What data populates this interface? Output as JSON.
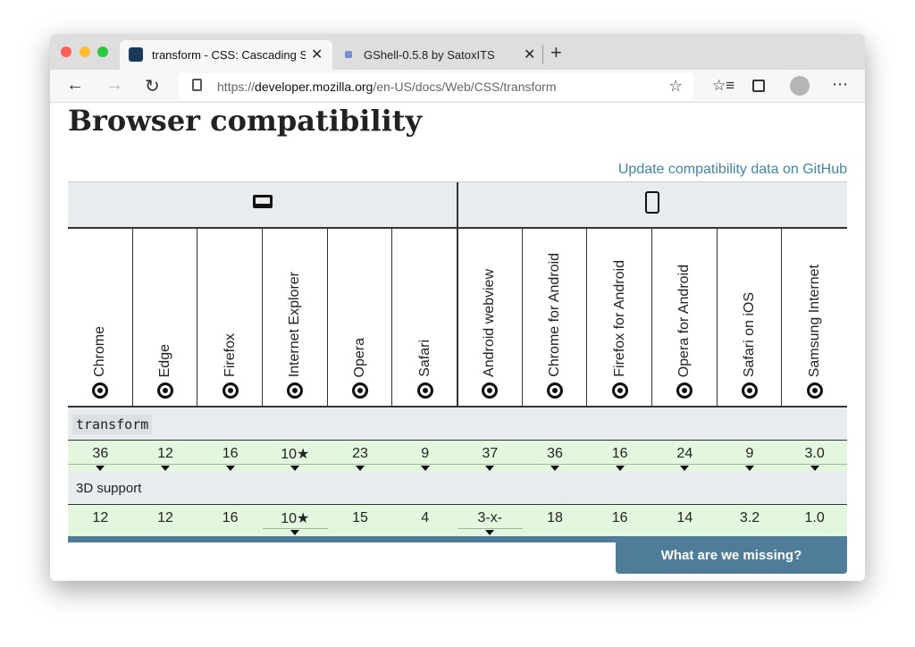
{
  "browser": {
    "tabs": [
      {
        "title": "transform - CSS: Cascading St"
      },
      {
        "title": "GShell-0.5.8 by SatoxITS"
      }
    ],
    "url": {
      "scheme": "https://",
      "host": "developer.mozilla.org",
      "path": "/en-US/docs/Web/CSS/transform"
    }
  },
  "page": {
    "heading": "Browser compatibility",
    "update_link": "Update compatibility data on GitHub",
    "browsers": [
      "Chrome",
      "Edge",
      "Firefox",
      "Internet Explorer",
      "Opera",
      "Safari",
      "Android webview",
      "Chrome for Android",
      "Firefox for Android",
      "Opera for Android",
      "Safari on iOS",
      "Samsung Internet"
    ],
    "features": [
      {
        "name": "transform",
        "support": [
          "36",
          "12",
          "16",
          "10★",
          "23",
          "9",
          "37",
          "36",
          "16",
          "24",
          "9",
          "3.0"
        ]
      },
      {
        "name": "3D support",
        "support": [
          "12",
          "12",
          "16",
          "10★",
          "15",
          "4",
          "3-x-",
          "18",
          "16",
          "14",
          "3.2",
          "1.0"
        ]
      }
    ],
    "feedback_button": "What are we missing?"
  }
}
